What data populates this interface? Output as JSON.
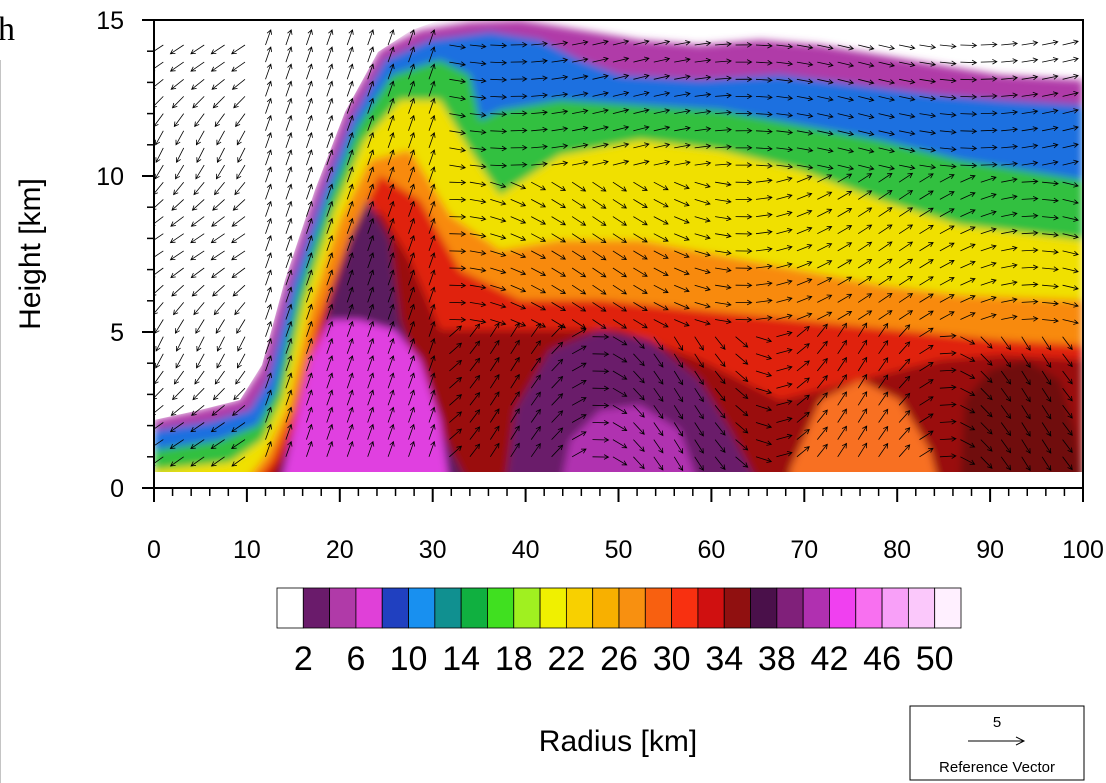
{
  "panel_label": "h",
  "chart_data": {
    "type": "heatmap",
    "title": "",
    "xlabel": "Radius [km]",
    "ylabel": "Height [km]",
    "xlim": [
      0,
      100
    ],
    "ylim": [
      0,
      15
    ],
    "x_ticks": [
      0,
      10,
      20,
      30,
      40,
      50,
      60,
      70,
      80,
      90,
      100
    ],
    "y_ticks": [
      0,
      5,
      10,
      15
    ],
    "colorbar": {
      "labels": [
        "2",
        "6",
        "10",
        "14",
        "18",
        "22",
        "26",
        "30",
        "34",
        "38",
        "42",
        "46",
        "50"
      ],
      "colors": [
        "#ffffff",
        "#6a1b6b",
        "#b03aa8",
        "#e040d8",
        "#2040c0",
        "#1890f0",
        "#109090",
        "#10b040",
        "#40e020",
        "#a0f020",
        "#f0f000",
        "#f8d000",
        "#f8b000",
        "#f89010",
        "#f86010",
        "#f83010",
        "#d01010",
        "#901010",
        "#4a104a",
        "#80207a",
        "#b030b0",
        "#f040f0",
        "#f870f0",
        "#f8a0f8",
        "#fbc8fb",
        "#fff0ff"
      ]
    },
    "vector_reference": {
      "value": "5",
      "label": "Reference Vector"
    }
  }
}
